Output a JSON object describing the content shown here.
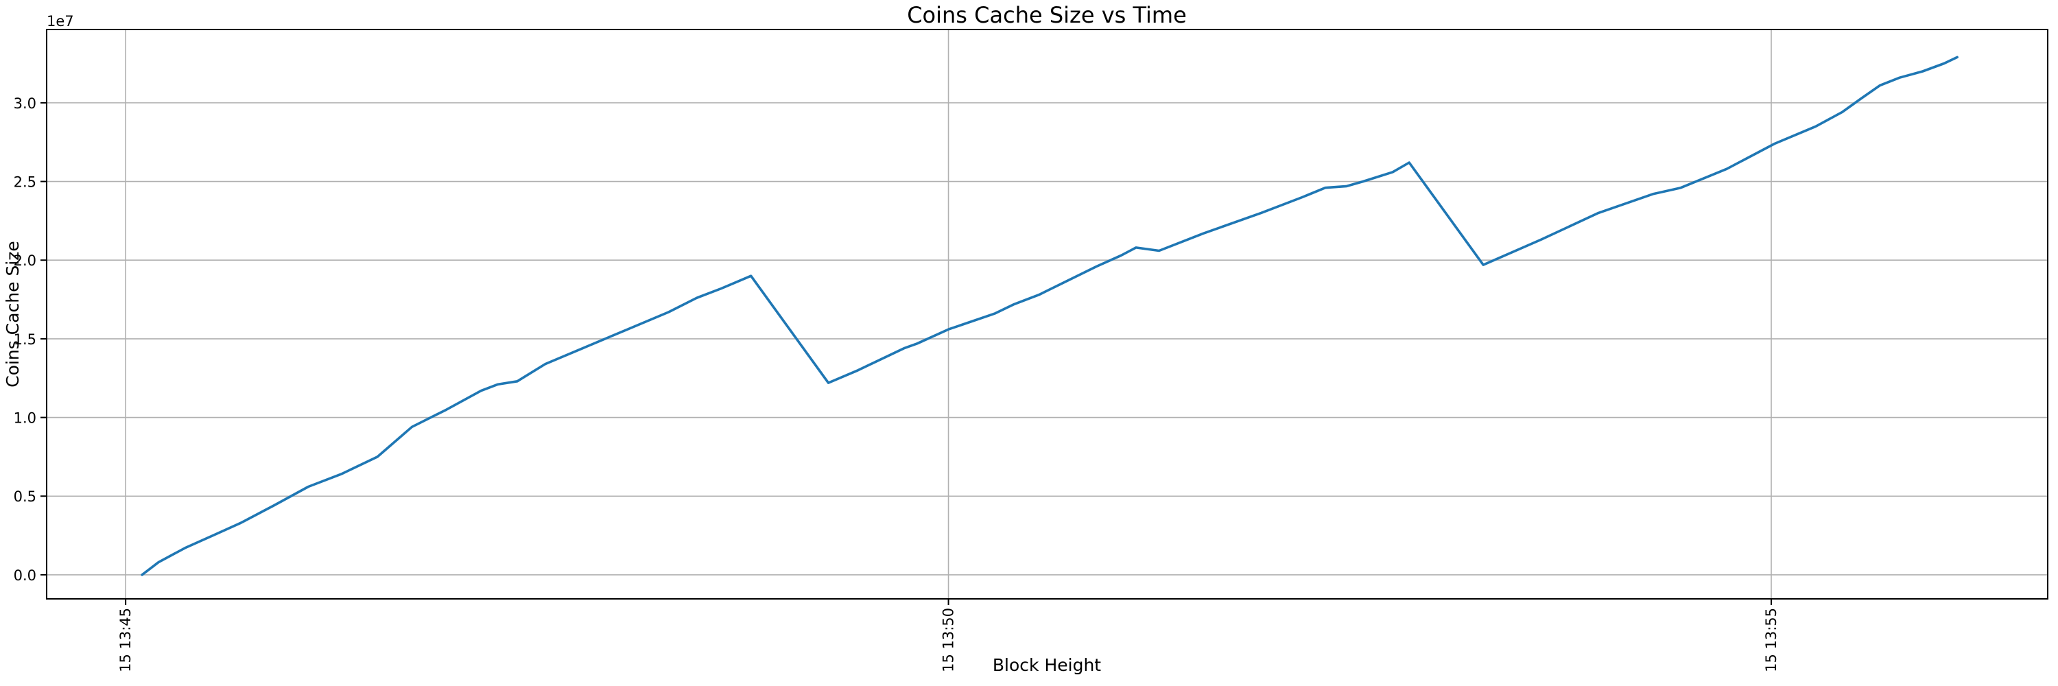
{
  "chart_data": {
    "type": "line",
    "title": "Coins Cache Size vs Time",
    "xlabel": "Block Height",
    "ylabel": "Coins Cache Size",
    "y_offset_label": "1e7",
    "x_tick_labels": [
      "15 13:45",
      "15 13:50",
      "15 13:55"
    ],
    "x_tick_positions_min": [
      0,
      5,
      10
    ],
    "xlim_min": [
      -0.48,
      11.68
    ],
    "y_ticks": [
      0.0,
      0.5,
      1.0,
      1.5,
      2.0,
      2.5,
      3.0
    ],
    "ylim_1e7": [
      -0.153,
      3.466
    ],
    "grid": true,
    "legend_position": "none",
    "colors": {
      "line": "#1f77b4",
      "grid": "#b0b0b0",
      "spine": "#000000",
      "background": "#ffffff"
    },
    "series": [
      {
        "name": "Coins Cache Size",
        "y_units": "1e7",
        "x_units": "minutes after 15 13:45",
        "points": [
          [
            0.1,
            0.0
          ],
          [
            0.2,
            0.08
          ],
          [
            0.36,
            0.17
          ],
          [
            0.53,
            0.25
          ],
          [
            0.7,
            0.33
          ],
          [
            0.9,
            0.44
          ],
          [
            1.11,
            0.56
          ],
          [
            1.31,
            0.64
          ],
          [
            1.53,
            0.75
          ],
          [
            1.74,
            0.94
          ],
          [
            1.95,
            1.05
          ],
          [
            2.16,
            1.17
          ],
          [
            2.26,
            1.21
          ],
          [
            2.38,
            1.23
          ],
          [
            2.55,
            1.34
          ],
          [
            2.8,
            1.45
          ],
          [
            3.05,
            1.56
          ],
          [
            3.3,
            1.67
          ],
          [
            3.47,
            1.76
          ],
          [
            3.62,
            1.82
          ],
          [
            3.8,
            1.9
          ],
          [
            4.27,
            1.22
          ],
          [
            4.45,
            1.3
          ],
          [
            4.73,
            1.44
          ],
          [
            4.81,
            1.47
          ],
          [
            5.0,
            1.56
          ],
          [
            5.28,
            1.66
          ],
          [
            5.4,
            1.72
          ],
          [
            5.55,
            1.78
          ],
          [
            5.9,
            1.96
          ],
          [
            6.05,
            2.03
          ],
          [
            6.14,
            2.08
          ],
          [
            6.28,
            2.06
          ],
          [
            6.55,
            2.17
          ],
          [
            6.9,
            2.3
          ],
          [
            7.15,
            2.4
          ],
          [
            7.29,
            2.46
          ],
          [
            7.42,
            2.47
          ],
          [
            7.52,
            2.5
          ],
          [
            7.7,
            2.56
          ],
          [
            7.8,
            2.62
          ],
          [
            8.25,
            1.97
          ],
          [
            8.6,
            2.13
          ],
          [
            8.95,
            2.3
          ],
          [
            9.28,
            2.42
          ],
          [
            9.45,
            2.46
          ],
          [
            9.73,
            2.58
          ],
          [
            10.02,
            2.74
          ],
          [
            10.27,
            2.85
          ],
          [
            10.43,
            2.94
          ],
          [
            10.55,
            3.03
          ],
          [
            10.66,
            3.11
          ],
          [
            10.78,
            3.16
          ],
          [
            10.92,
            3.2
          ],
          [
            11.05,
            3.25
          ],
          [
            11.13,
            3.29
          ]
        ]
      }
    ]
  }
}
